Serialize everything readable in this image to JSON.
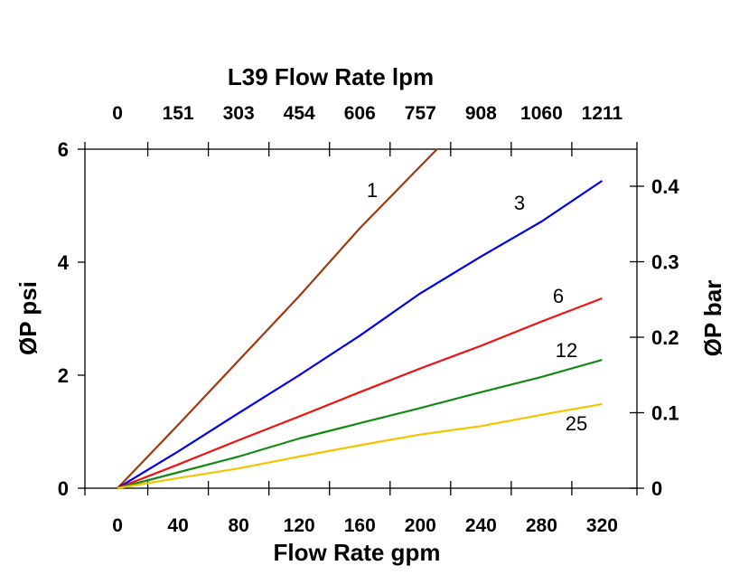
{
  "chart_data": {
    "type": "line",
    "title": "L39 Flow Rate lpm",
    "xlabel": "Flow Rate gpm",
    "ylabel": "ØP psi",
    "y2label": "ØP bar",
    "xlim": [
      -21.5,
      343
    ],
    "ylim": [
      0,
      6
    ],
    "y2lim": [
      0,
      0.45
    ],
    "grid": false,
    "legend": "inline labels",
    "x_ticks": [
      0,
      40,
      80,
      120,
      160,
      200,
      240,
      280,
      320
    ],
    "x_tick_labels": [
      "0",
      "40",
      "80",
      "120",
      "160",
      "200",
      "240",
      "280",
      "320"
    ],
    "x2_tick_labels": [
      "0",
      "151",
      "303",
      "454",
      "606",
      "757",
      "908",
      "1060",
      "1211"
    ],
    "y_ticks": [
      0,
      2,
      4,
      6
    ],
    "y_tick_labels": [
      "0",
      "2",
      "4",
      "6"
    ],
    "y2_ticks": [
      0,
      0.1,
      0.2,
      0.3,
      0.4
    ],
    "y2_tick_labels": [
      "0",
      "0.1",
      "0.2",
      "0.3",
      "0.4"
    ],
    "series": [
      {
        "name": "1",
        "color": "#a0380e",
        "x": [
          0,
          40,
          80,
          120,
          160,
          211
        ],
        "y": [
          0,
          1.12,
          2.26,
          3.4,
          4.6,
          6.0
        ]
      },
      {
        "name": "3",
        "color": "#0000ee",
        "x": [
          0,
          40,
          80,
          120,
          160,
          200,
          240,
          280,
          320
        ],
        "y": [
          0,
          0.65,
          1.33,
          2.0,
          2.7,
          3.45,
          4.1,
          4.72,
          5.44
        ]
      },
      {
        "name": "6",
        "color": "#ee1111",
        "x": [
          0,
          40,
          80,
          120,
          160,
          200,
          240,
          280,
          320
        ],
        "y": [
          0,
          0.42,
          0.85,
          1.27,
          1.7,
          2.12,
          2.52,
          2.95,
          3.36
        ]
      },
      {
        "name": "12",
        "color": "#138a13",
        "x": [
          0,
          40,
          80,
          120,
          160,
          200,
          240,
          280,
          320
        ],
        "y": [
          0,
          0.28,
          0.56,
          0.88,
          1.15,
          1.42,
          1.7,
          1.97,
          2.27
        ]
      },
      {
        "name": "25",
        "color": "#f5c400",
        "x": [
          0,
          40,
          80,
          120,
          160,
          200,
          240,
          280,
          320
        ],
        "y": [
          0,
          0.18,
          0.35,
          0.56,
          0.76,
          0.95,
          1.1,
          1.3,
          1.49
        ]
      }
    ]
  }
}
